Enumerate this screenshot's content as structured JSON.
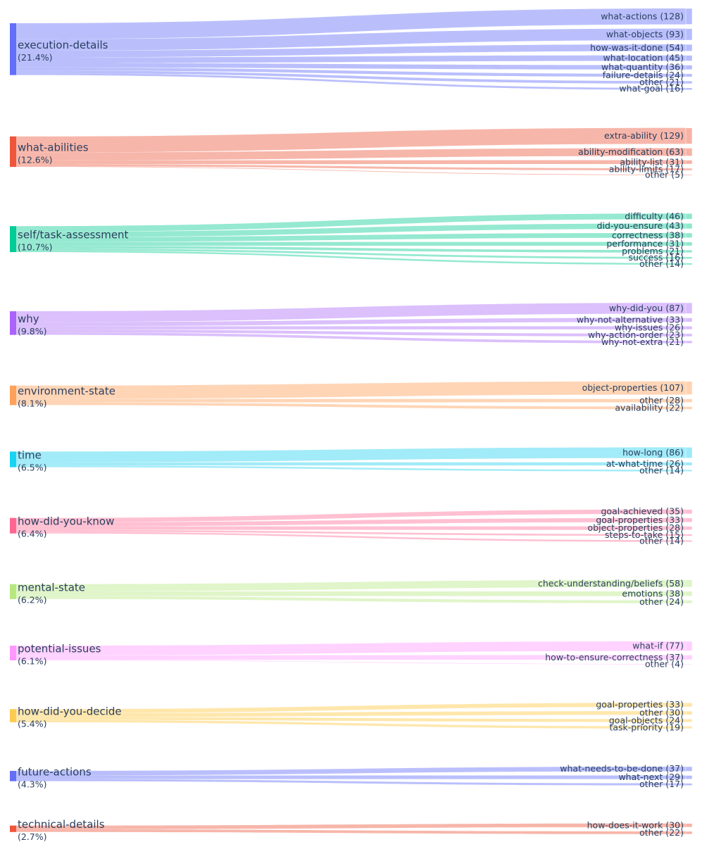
{
  "chart_data": {
    "type": "sankey",
    "title": "",
    "sources": [
      {
        "name": "execution-details",
        "percent": "(21.4%)",
        "node_color": "#636efa",
        "link_color": "#b6bcfc",
        "targets": [
          {
            "name": "what-actions",
            "count": 128,
            "label": "what-actions (128)"
          },
          {
            "name": "what-objects",
            "count": 93,
            "label": "what-objects (93)"
          },
          {
            "name": "how-was-it-done",
            "count": 54,
            "label": "how-was-it-done (54)"
          },
          {
            "name": "what-location",
            "count": 45,
            "label": "what-location (45)"
          },
          {
            "name": "what-quantity",
            "count": 36,
            "label": "what-quantity (36)"
          },
          {
            "name": "failure-details",
            "count": 24,
            "label": "failure-details (24)"
          },
          {
            "name": "other",
            "count": 21,
            "label": "other (21)"
          },
          {
            "name": "what-goal",
            "count": 16,
            "label": "what-goal (16)"
          }
        ]
      },
      {
        "name": "what-abilities",
        "percent": "(12.6%)",
        "node_color": "#ef553b",
        "link_color": "#f7b2a5",
        "targets": [
          {
            "name": "extra-ability",
            "count": 129,
            "label": "extra-ability (129)"
          },
          {
            "name": "ability-modification",
            "count": 63,
            "label": "ability-modification (63)"
          },
          {
            "name": "ability-list",
            "count": 31,
            "label": "ability-list (31)"
          },
          {
            "name": "ability-limits",
            "count": 17,
            "label": "ability-limits (17)"
          },
          {
            "name": "other",
            "count": 5,
            "label": "other (5)"
          }
        ]
      },
      {
        "name": "self/task-assessment",
        "percent": "(10.7%)",
        "node_color": "#00cc96",
        "link_color": "#8fe8cd",
        "targets": [
          {
            "name": "difficulty",
            "count": 46,
            "label": "difficulty (46)"
          },
          {
            "name": "did-you-ensure",
            "count": 43,
            "label": "did-you-ensure (43)"
          },
          {
            "name": "correctness",
            "count": 38,
            "label": "correctness (38)"
          },
          {
            "name": "performance",
            "count": 31,
            "label": "performance (31)"
          },
          {
            "name": "problems",
            "count": 21,
            "label": "problems (21)"
          },
          {
            "name": "success",
            "count": 16,
            "label": "success (16)"
          },
          {
            "name": "other",
            "count": 14,
            "label": "other (14)"
          }
        ]
      },
      {
        "name": "why",
        "percent": "(9.8%)",
        "node_color": "#ab63fa",
        "link_color": "#d9bdfc",
        "targets": [
          {
            "name": "why-did-you",
            "count": 87,
            "label": "why-did-you (87)"
          },
          {
            "name": "why-not-alternative",
            "count": 33,
            "label": "why-not-alternative (33)"
          },
          {
            "name": "why-issues",
            "count": 26,
            "label": "why-issues (26)"
          },
          {
            "name": "why-action-order",
            "count": 23,
            "label": "why-action-order (23)"
          },
          {
            "name": "why-not-extra",
            "count": 21,
            "label": "why-not-extra (21)"
          }
        ]
      },
      {
        "name": "environment-state",
        "percent": "(8.1%)",
        "node_color": "#ffa15a",
        "link_color": "#ffd3b2",
        "targets": [
          {
            "name": "object-properties",
            "count": 107,
            "label": "object-properties (107)"
          },
          {
            "name": "other",
            "count": 28,
            "label": "other (28)"
          },
          {
            "name": "availability",
            "count": 22,
            "label": "availability (22)"
          }
        ]
      },
      {
        "name": "time",
        "percent": "(6.5%)",
        "node_color": "#19d3f3",
        "link_color": "#9deaf8",
        "targets": [
          {
            "name": "how-long",
            "count": 86,
            "label": "how-long (86)"
          },
          {
            "name": "at-what-time",
            "count": 26,
            "label": "at-what-time (26)"
          },
          {
            "name": "other",
            "count": 14,
            "label": "other (14)"
          }
        ]
      },
      {
        "name": "how-did-you-know",
        "percent": "(6.4%)",
        "node_color": "#ff6692",
        "link_color": "#ffbdd0",
        "targets": [
          {
            "name": "goal-achieved",
            "count": 35,
            "label": "goal-achieved (35)"
          },
          {
            "name": "goal-properties",
            "count": 33,
            "label": "goal-properties (33)"
          },
          {
            "name": "object-properties",
            "count": 28,
            "label": "object-properties (28)"
          },
          {
            "name": "steps-to-take",
            "count": 15,
            "label": "steps-to-take (15)"
          },
          {
            "name": "other",
            "count": 14,
            "label": "other (14)"
          }
        ]
      },
      {
        "name": "mental-state",
        "percent": "(6.2%)",
        "node_color": "#b6e880",
        "link_color": "#def4c6",
        "targets": [
          {
            "name": "check-understanding/beliefs",
            "count": 58,
            "label": "check-understanding/beliefs (58)"
          },
          {
            "name": "emotions",
            "count": 38,
            "label": "emotions (38)"
          },
          {
            "name": "other",
            "count": 24,
            "label": "other (24)"
          }
        ]
      },
      {
        "name": "potential-issues",
        "percent": "(6.1%)",
        "node_color": "#ff97ff",
        "link_color": "#ffd0ff",
        "targets": [
          {
            "name": "what-if",
            "count": 77,
            "label": "what-if (77)"
          },
          {
            "name": "how-to-ensure-correctness",
            "count": 37,
            "label": "how-to-ensure-correctness (37)"
          },
          {
            "name": "other",
            "count": 4,
            "label": "other (4)"
          }
        ]
      },
      {
        "name": "how-did-you-decide",
        "percent": "(5.4%)",
        "node_color": "#fecb52",
        "link_color": "#ffe6a8",
        "targets": [
          {
            "name": "goal-properties",
            "count": 33,
            "label": "goal-properties (33)"
          },
          {
            "name": "other",
            "count": 30,
            "label": "other (30)"
          },
          {
            "name": "goal-objects",
            "count": 24,
            "label": "goal-objects (24)"
          },
          {
            "name": "task-priority",
            "count": 19,
            "label": "task-priority (19)"
          }
        ]
      },
      {
        "name": "future-actions",
        "percent": "(4.3%)",
        "node_color": "#636efa",
        "link_color": "#b6bcfc",
        "targets": [
          {
            "name": "what-needs-to-be-done",
            "count": 37,
            "label": "what-needs-to-be-done (37)"
          },
          {
            "name": "what-next",
            "count": 29,
            "label": "what-next (29)"
          },
          {
            "name": "other",
            "count": 17,
            "label": "other (17)"
          }
        ]
      },
      {
        "name": "technical-details",
        "percent": "(2.7%)",
        "node_color": "#ef553b",
        "link_color": "#f7b2a5",
        "targets": [
          {
            "name": "how-does-it-work",
            "count": 30,
            "label": "how-does-it-work (30)"
          },
          {
            "name": "other",
            "count": 22,
            "label": "other (22)"
          }
        ]
      }
    ]
  }
}
